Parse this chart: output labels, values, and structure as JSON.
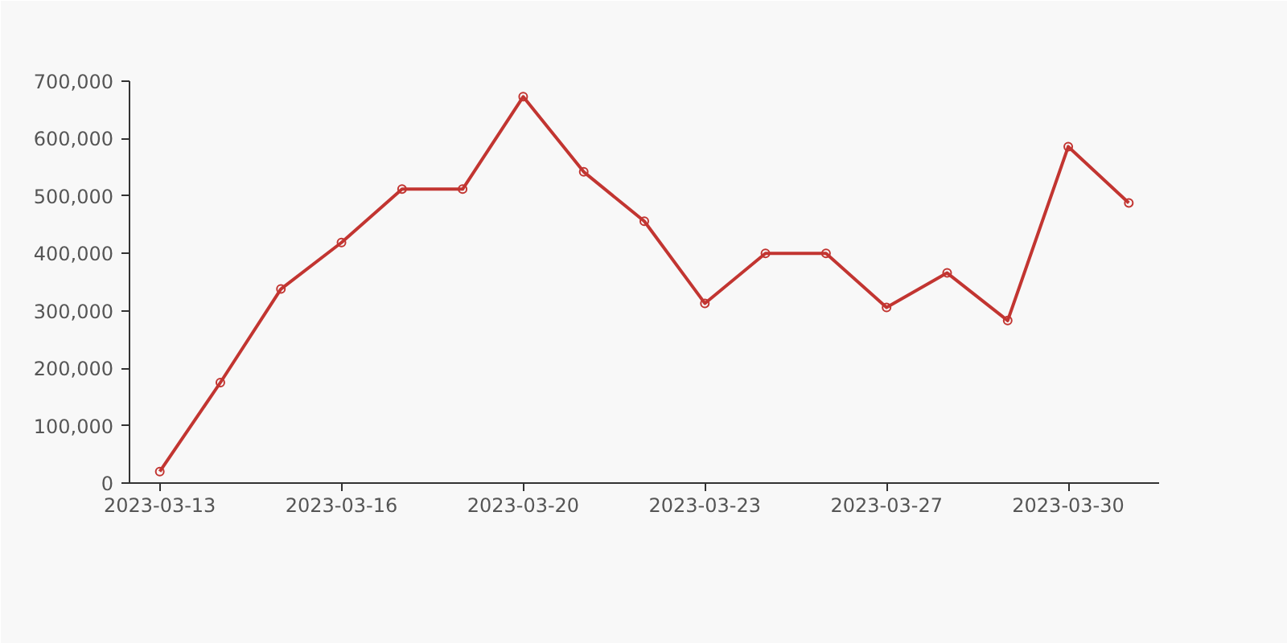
{
  "chart_data": {
    "type": "line",
    "categories": [
      "2023-03-13",
      null,
      null,
      "2023-03-16",
      null,
      null,
      "2023-03-20",
      null,
      null,
      "2023-03-23",
      null,
      null,
      "2023-03-27",
      null,
      null,
      "2023-03-30",
      null
    ],
    "series": [
      {
        "color": "#c23531",
        "values": [
          20000,
          175000,
          338000,
          419000,
          512000,
          512000,
          673000,
          542000,
          456000,
          313000,
          400000,
          400000,
          306000,
          366000,
          283000,
          586000,
          488000
        ]
      }
    ],
    "ylim": [
      0,
      700000
    ],
    "yticks": [
      {
        "value": 0,
        "label": "0"
      },
      {
        "value": 100000,
        "label": "100,000"
      },
      {
        "value": 200000,
        "label": "200,000"
      },
      {
        "value": 300000,
        "label": "300,000"
      },
      {
        "value": 400000,
        "label": "400,000"
      },
      {
        "value": 500000,
        "label": "500,000"
      },
      {
        "value": 600000,
        "label": "600,000"
      },
      {
        "value": 700000,
        "label": "700,000"
      }
    ],
    "grid": false,
    "marker": "circle",
    "line_style": "solid"
  }
}
